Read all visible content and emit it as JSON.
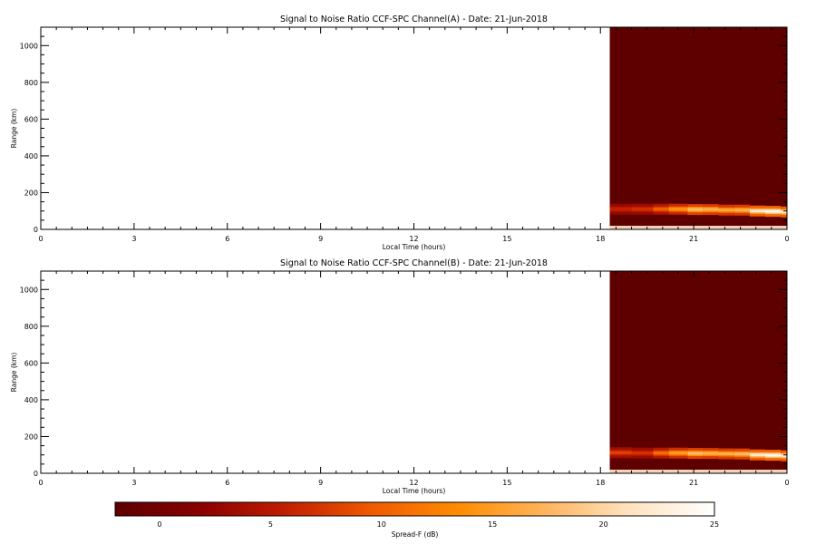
{
  "chart_data": [
    {
      "type": "heatmap",
      "title": "Signal to Noise Ratio CCF-SPC Channel(A) - Date: 21-Jun-2018",
      "xlabel": "Local Time (hours)",
      "ylabel": "Range (km)",
      "xlim": [
        0,
        24
      ],
      "ylim": [
        0,
        1100
      ],
      "x_ticks": [
        "0",
        "3",
        "6",
        "9",
        "12",
        "15",
        "18",
        "21",
        "0"
      ],
      "y_ticks": [
        "0",
        "200",
        "400",
        "600",
        "800",
        "1000"
      ],
      "data_extent": {
        "t_start": 18.3,
        "t_end": 24
      },
      "background_snr_db": -2,
      "echo_layer": [
        {
          "t": 18.3,
          "range": 110,
          "snr": 6
        },
        {
          "t": 19.0,
          "range": 110,
          "snr": 7
        },
        {
          "t": 19.7,
          "range": 110,
          "snr": 10
        },
        {
          "t": 20.2,
          "range": 110,
          "snr": 14
        },
        {
          "t": 20.8,
          "range": 108,
          "snr": 18
        },
        {
          "t": 21.3,
          "range": 108,
          "snr": 17
        },
        {
          "t": 21.8,
          "range": 105,
          "snr": 16
        },
        {
          "t": 22.3,
          "range": 105,
          "snr": 17
        },
        {
          "t": 22.8,
          "range": 100,
          "snr": 22
        },
        {
          "t": 23.3,
          "range": 98,
          "snr": 24
        },
        {
          "t": 23.8,
          "range": 95,
          "snr": 22
        }
      ]
    },
    {
      "type": "heatmap",
      "title": "Signal to Noise Ratio CCF-SPC Channel(B) - Date: 21-Jun-2018",
      "xlabel": "Local Time (hours)",
      "ylabel": "Range (km)",
      "xlim": [
        0,
        24
      ],
      "ylim": [
        0,
        1100
      ],
      "x_ticks": [
        "0",
        "3",
        "6",
        "9",
        "12",
        "15",
        "18",
        "21",
        "0"
      ],
      "y_ticks": [
        "0",
        "200",
        "400",
        "600",
        "800",
        "1000"
      ],
      "data_extent": {
        "t_start": 18.3,
        "t_end": 24
      },
      "background_snr_db": -2,
      "echo_layer": [
        {
          "t": 18.3,
          "range": 112,
          "snr": 8
        },
        {
          "t": 19.0,
          "range": 110,
          "snr": 7
        },
        {
          "t": 19.7,
          "range": 110,
          "snr": 11
        },
        {
          "t": 20.2,
          "range": 110,
          "snr": 15
        },
        {
          "t": 20.8,
          "range": 108,
          "snr": 18
        },
        {
          "t": 21.3,
          "range": 108,
          "snr": 17
        },
        {
          "t": 21.8,
          "range": 106,
          "snr": 17
        },
        {
          "t": 22.3,
          "range": 105,
          "snr": 18
        },
        {
          "t": 22.8,
          "range": 100,
          "snr": 22
        },
        {
          "t": 23.3,
          "range": 98,
          "snr": 24
        },
        {
          "t": 23.8,
          "range": 95,
          "snr": 22
        }
      ]
    }
  ],
  "colorbar": {
    "label": "Spread-F (dB)",
    "range": [
      -2,
      25
    ],
    "ticks": [
      "0",
      "5",
      "10",
      "15",
      "20",
      "25"
    ],
    "tick_values": [
      0,
      5,
      10,
      15,
      20,
      25
    ],
    "colors": [
      "#5e0000",
      "#8a0000",
      "#c21e00",
      "#f05a00",
      "#ff8c00",
      "#ffb35a",
      "#ffe3bf",
      "#ffffff"
    ]
  }
}
